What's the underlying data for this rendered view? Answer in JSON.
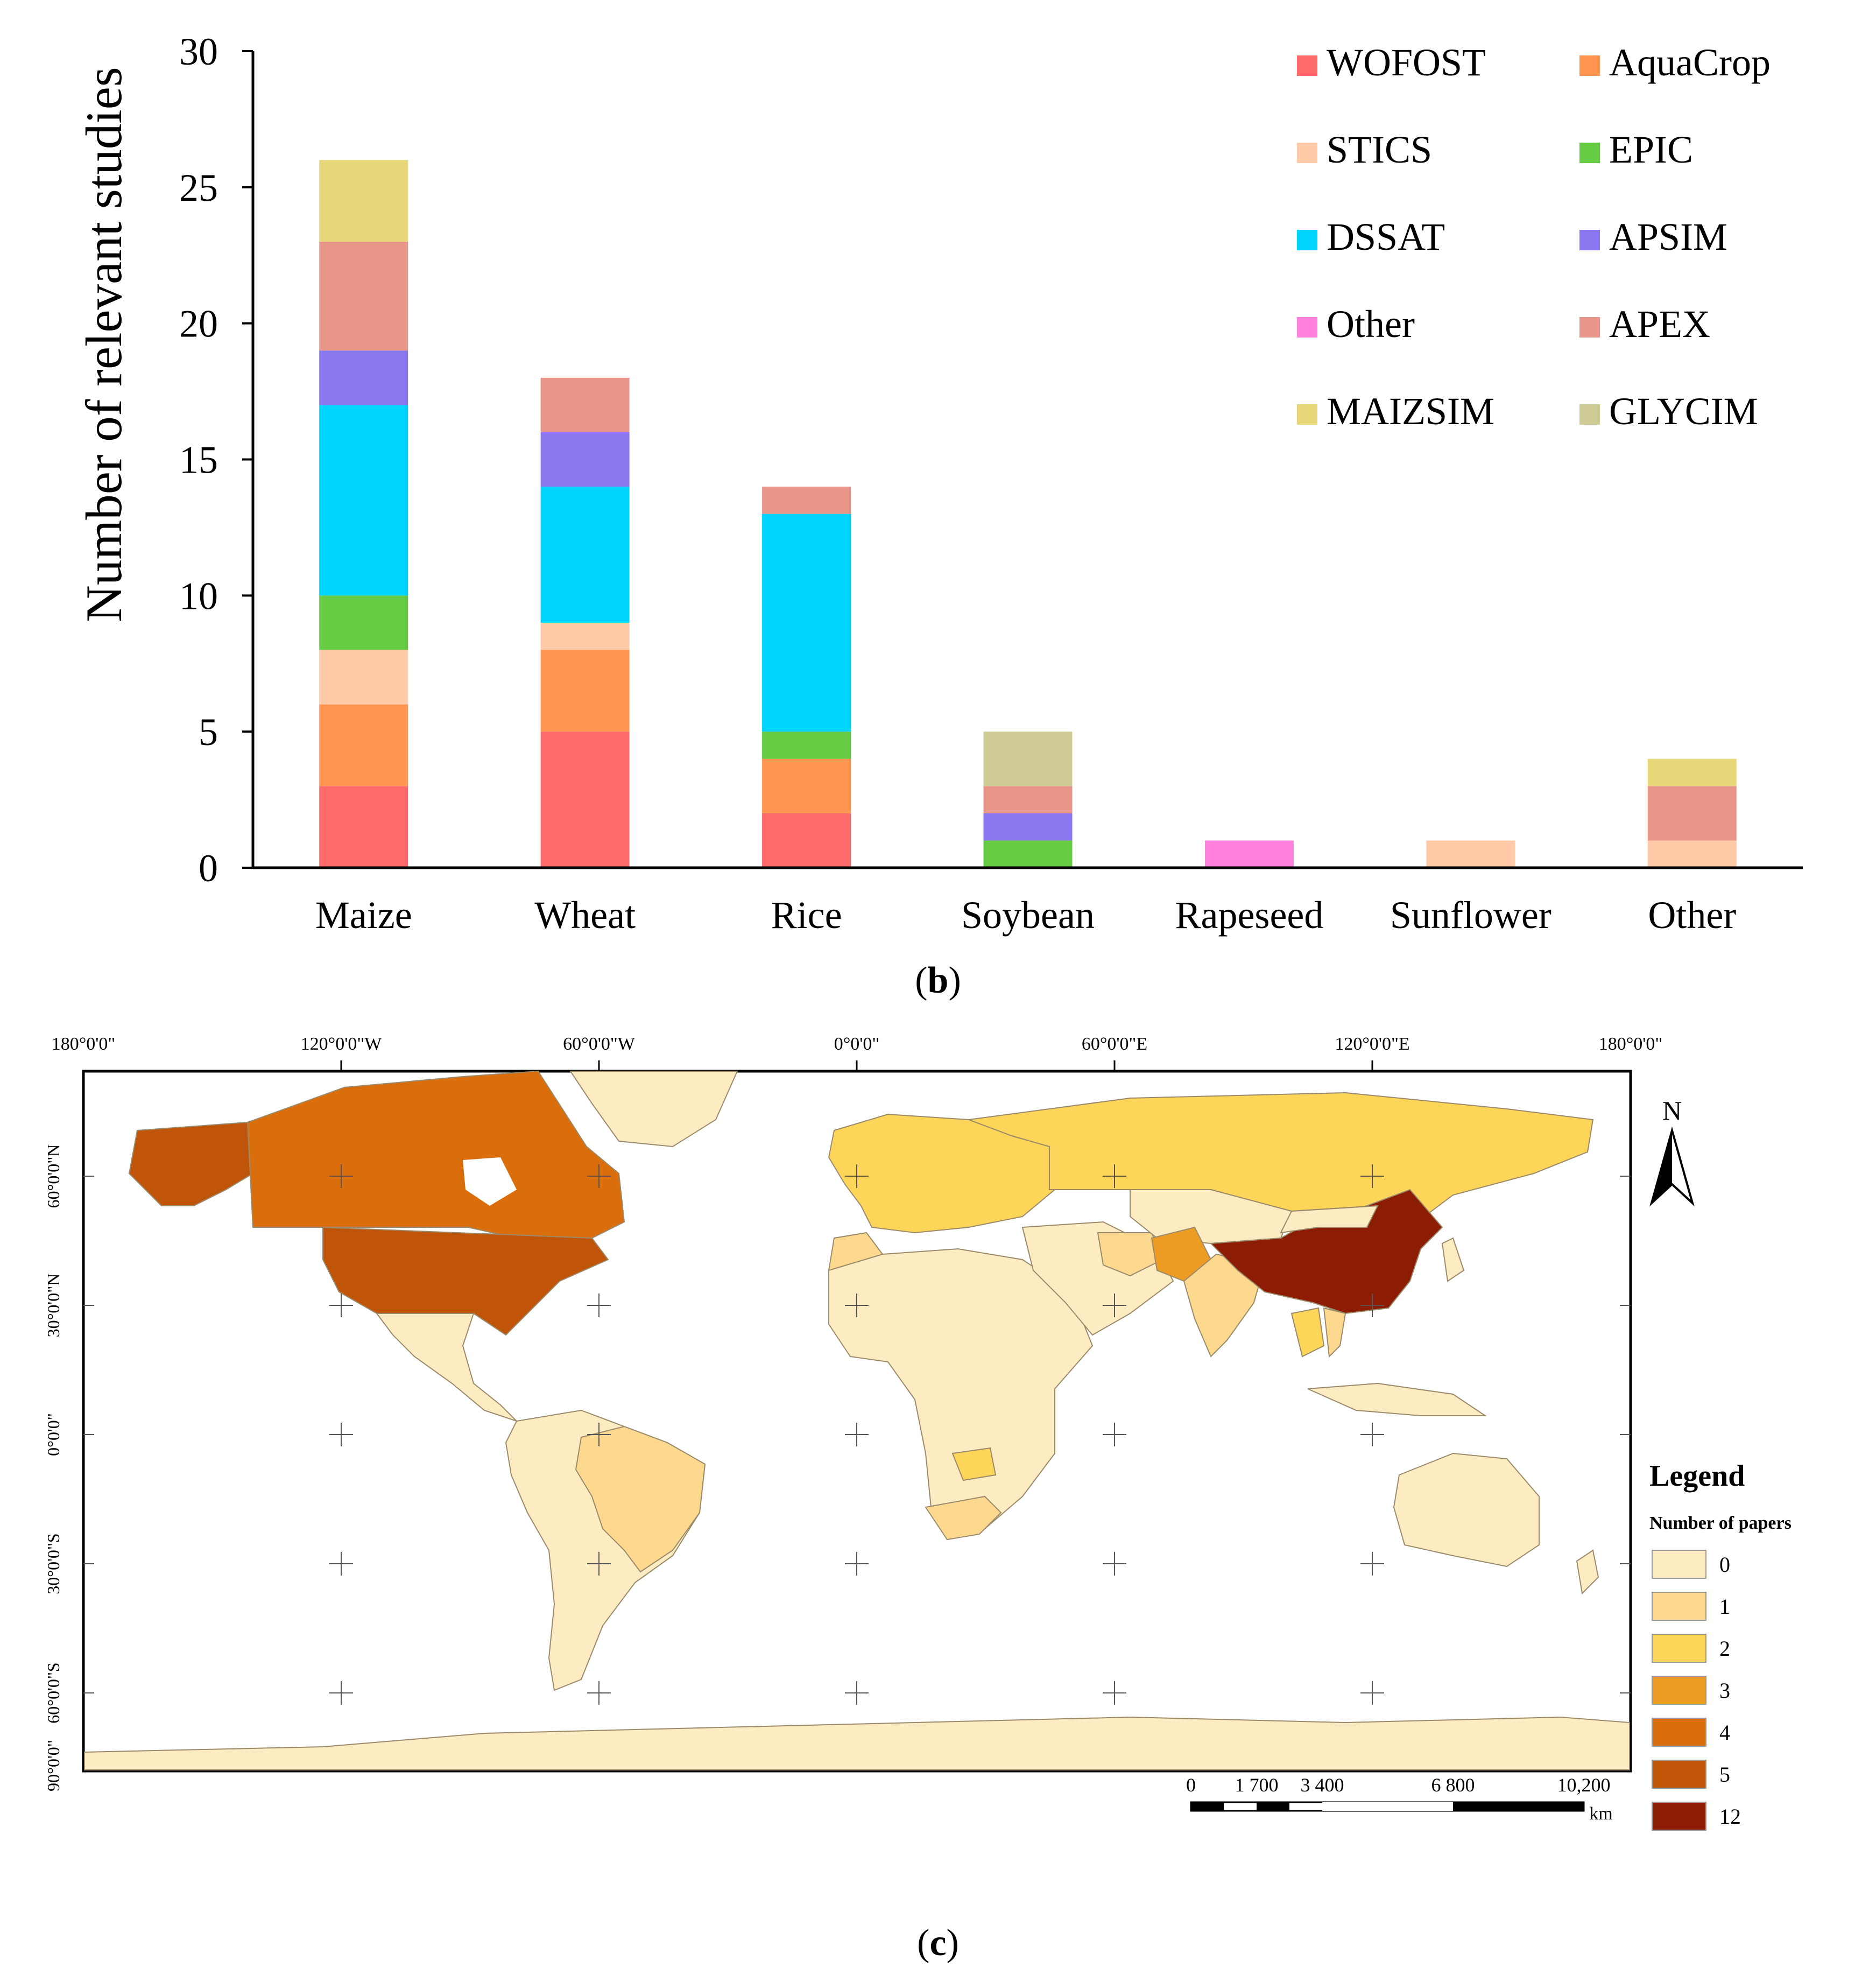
{
  "panel_b": {
    "caption_open": "(",
    "caption_letter": "b",
    "caption_close": ")"
  },
  "panel_c": {
    "caption_open": "(",
    "caption_letter": "c",
    "caption_close": ")"
  },
  "chart_data": [
    {
      "type": "bar",
      "stacked": true,
      "title": "",
      "xlabel": "",
      "ylabel": "Number of relevant studies",
      "ylim": [
        0,
        30
      ],
      "yticks": [
        0,
        5,
        10,
        15,
        20,
        25,
        30
      ],
      "legend_position": "top-right",
      "categories": [
        "Maize",
        "Wheat",
        "Rice",
        "Soybean",
        "Rapeseed",
        "Sunflower",
        "Other"
      ],
      "series": [
        {
          "name": "WOFOST",
          "color": "#ff6b6b",
          "values": [
            3,
            5,
            2,
            0,
            0,
            0,
            0
          ]
        },
        {
          "name": "AquaCrop",
          "color": "#ff9550",
          "values": [
            3,
            3,
            2,
            0,
            0,
            0,
            0
          ]
        },
        {
          "name": "STICS",
          "color": "#ffcaa8",
          "values": [
            2,
            1,
            0,
            0,
            0,
            1,
            1
          ]
        },
        {
          "name": "EPIC",
          "color": "#66cc44",
          "values": [
            2,
            0,
            1,
            1,
            0,
            0,
            0
          ]
        },
        {
          "name": "DSSAT",
          "color": "#00d4ff",
          "values": [
            7,
            5,
            8,
            0,
            0,
            0,
            0
          ]
        },
        {
          "name": "APSIM",
          "color": "#8877ee",
          "values": [
            2,
            2,
            0,
            1,
            0,
            0,
            0
          ]
        },
        {
          "name": "Other",
          "color": "#ff80dd",
          "values": [
            0,
            0,
            0,
            0,
            1,
            0,
            0
          ]
        },
        {
          "name": "APEX",
          "color": "#e8968a",
          "values": [
            4,
            2,
            1,
            1,
            0,
            0,
            2
          ]
        },
        {
          "name": "MAIZSIM",
          "color": "#e6d878",
          "values": [
            3,
            0,
            0,
            0,
            0,
            0,
            1
          ]
        },
        {
          "name": "GLYCIM",
          "color": "#d0cc96",
          "values": [
            0,
            0,
            0,
            2,
            0,
            0,
            0
          ]
        }
      ]
    },
    {
      "type": "choropleth-map",
      "title": "",
      "top_axis_labels": [
        "180°0'0\"",
        "120°0'0\"W",
        "60°0'0\"W",
        "0°0'0\"",
        "60°0'0\"E",
        "120°0'0\"E",
        "180°0'0\""
      ],
      "left_axis_labels": [
        "60°0'0\"N",
        "30°0'0\"N",
        "0°0'0\"",
        "30°0'0\"S",
        "60°0'0\"S",
        "90°0'0\""
      ],
      "north_arrow_label": "N",
      "legend": {
        "title": "Legend",
        "subtitle": "Number of papers",
        "classes": [
          {
            "label": "0",
            "color": "#fdebc2"
          },
          {
            "label": "1",
            "color": "#fcd98f"
          },
          {
            "label": "2",
            "color": "#fdd558"
          },
          {
            "label": "3",
            "color": "#ec9c22"
          },
          {
            "label": "4",
            "color": "#db6e0c"
          },
          {
            "label": "5",
            "color": "#c05408"
          },
          {
            "label": "12",
            "color": "#8c1c04"
          }
        ]
      },
      "countries": [
        {
          "name": "China",
          "papers": 12
        },
        {
          "name": "United States",
          "papers": 5
        },
        {
          "name": "Alaska (United States)",
          "papers": 5
        },
        {
          "name": "Canada",
          "papers": 4
        },
        {
          "name": "Pakistan",
          "papers": 3
        },
        {
          "name": "Russia",
          "papers": 2
        },
        {
          "name": "Europe",
          "papers": 2
        },
        {
          "name": "Zambia",
          "papers": 2
        },
        {
          "name": "Thailand",
          "papers": 2
        },
        {
          "name": "India",
          "papers": 1
        },
        {
          "name": "Brazil",
          "papers": 1
        },
        {
          "name": "South Africa",
          "papers": 1
        },
        {
          "name": "Iran",
          "papers": 1
        },
        {
          "name": "Vietnam",
          "papers": 1
        },
        {
          "name": "Morocco",
          "papers": 1
        }
      ],
      "scale_bar": {
        "labels": [
          "0",
          "1 700",
          "3 400",
          "6 800",
          "10,200"
        ],
        "unit": "km"
      }
    }
  ]
}
